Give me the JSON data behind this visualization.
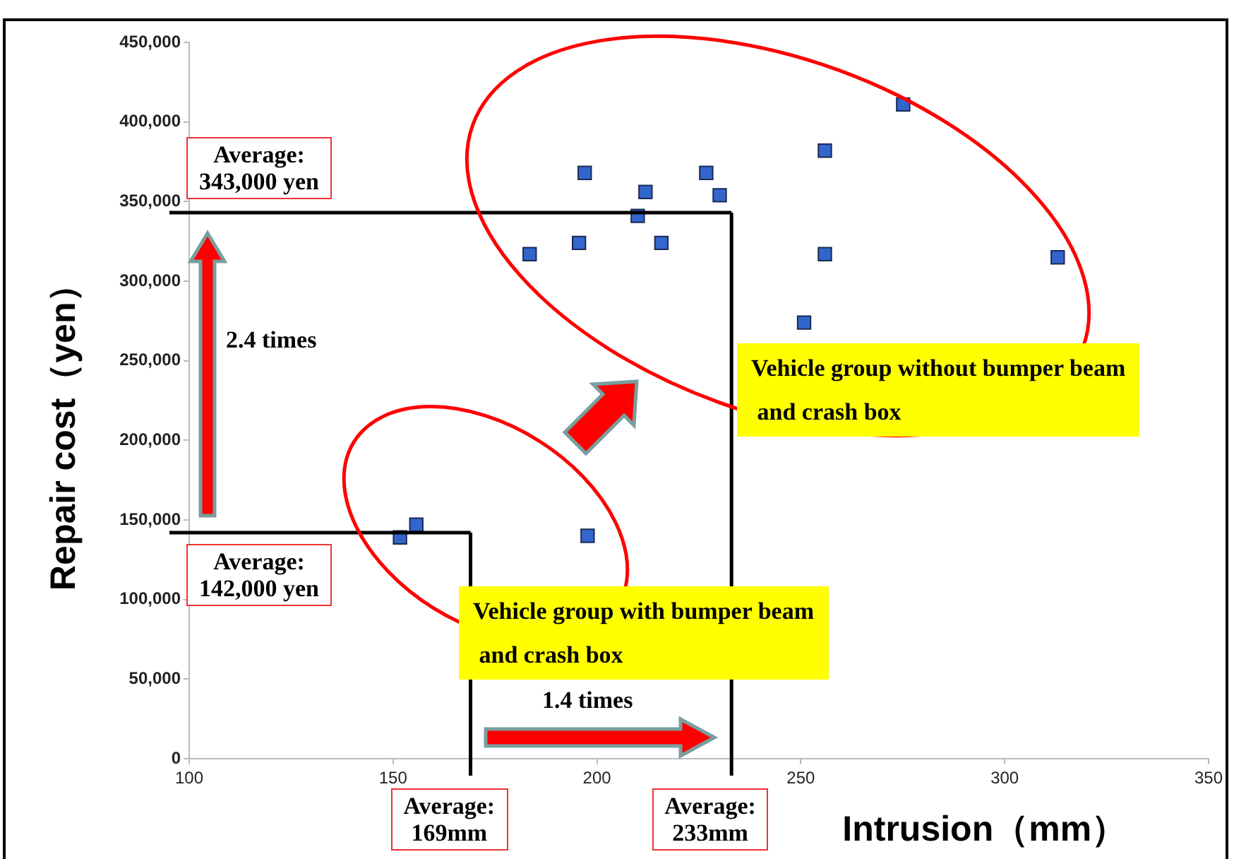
{
  "chart_data": {
    "type": "scatter",
    "xlabel": "Intrusion（mm）",
    "ylabel": "Repair cost（yen）",
    "x": [
      151.7,
      155.7,
      197.7,
      183.5,
      195.6,
      197,
      210,
      211.9,
      215.8,
      226.8,
      230.1,
      250.8,
      255.9,
      255.9,
      275.1,
      313
    ],
    "series": [
      {
        "color": "#3366cc",
        "values": [
          139000,
          147000,
          140000,
          317000,
          324000,
          368000,
          341000,
          356000,
          324000,
          368000,
          354000,
          274000,
          382000,
          317000,
          411000,
          315000
        ]
      }
    ],
    "xlim": [
      100,
      350
    ],
    "xticks": [
      100,
      150,
      200,
      250,
      300,
      350
    ],
    "ylim": [
      0,
      450000
    ],
    "yticks": [
      {
        "value": 0,
        "label": "0"
      },
      {
        "value": 50000,
        "label": "50,000"
      },
      {
        "value": 100000,
        "label": "100,000"
      },
      {
        "value": 150000,
        "label": "150,000"
      },
      {
        "value": 200000,
        "label": "200,000"
      },
      {
        "value": 250000,
        "label": "250,000"
      },
      {
        "value": 300000,
        "label": "300,000"
      },
      {
        "value": 350000,
        "label": "350,000"
      },
      {
        "value": 400000,
        "label": "400,000"
      },
      {
        "value": 450000,
        "label": "450,000"
      }
    ],
    "ref_lines": [
      {
        "axis": "y",
        "value": 343000,
        "label": "Average:\n343,000 yen",
        "color": "#000000"
      },
      {
        "axis": "y",
        "value": 142000,
        "label": "Average:\n142,000 yen",
        "color": "#000000"
      },
      {
        "axis": "x",
        "value": 233,
        "label": "Average:\n233mm",
        "color": "#000000"
      },
      {
        "axis": "x",
        "value": 169,
        "label": "Average:\n169mm",
        "color": "#000000"
      }
    ],
    "annotations": [
      "2.4 times",
      "1.4 times",
      "Vehicle group without bumper beam\n and crash box",
      "Vehicle group with bumper beam\n and crash box"
    ],
    "marker": "square",
    "grid": false,
    "legend": false
  }
}
